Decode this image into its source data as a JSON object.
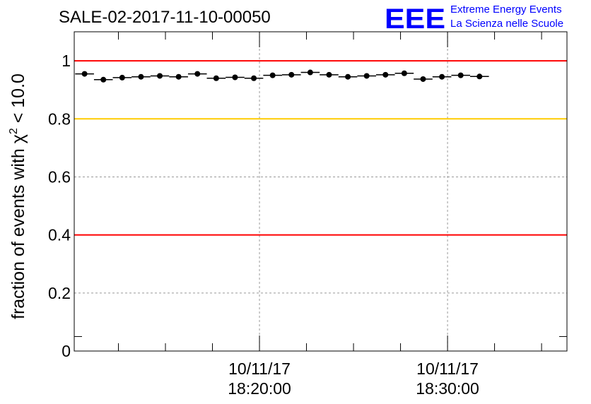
{
  "chart_data": {
    "type": "scatter",
    "title": "SALE-02-2017-11-10-00050",
    "ylabel_prefix": "fraction of events with χ",
    "ylabel_sup": "2",
    "ylabel_suffix": " < 10.0",
    "xlabel": "",
    "x_unit": "minutes after 10/11/17 18:10:00",
    "xlim": [
      -4.85,
      21.35
    ],
    "ylim": [
      0,
      1.1
    ],
    "y_ticks": [
      0,
      0.2,
      0.4,
      0.6,
      0.8,
      1
    ],
    "y_tick_labels": [
      "0",
      "0.2",
      "0.4",
      "0.6",
      "0.8",
      "1"
    ],
    "x_tick_labels": [
      {
        "x": 5,
        "date": "10/11/17",
        "time": "18:20:00"
      },
      {
        "x": 15,
        "date": "10/11/17",
        "time": "18:30:00"
      }
    ],
    "x": [
      -4.3,
      -3.3,
      -2.3,
      -1.3,
      -0.3,
      0.7,
      1.7,
      2.7,
      3.7,
      4.7,
      5.7,
      6.7,
      7.7,
      8.7,
      9.7,
      10.7,
      11.7,
      12.7,
      13.7,
      14.7,
      15.7,
      16.7
    ],
    "x_halfwidth": 0.5,
    "values": [
      0.955,
      0.935,
      0.942,
      0.945,
      0.948,
      0.945,
      0.955,
      0.94,
      0.943,
      0.94,
      0.95,
      0.952,
      0.96,
      0.952,
      0.945,
      0.948,
      0.952,
      0.957,
      0.937,
      0.945,
      0.95,
      0.946
    ],
    "reference_lines": [
      {
        "y": 1.0,
        "color": "#ff0000"
      },
      {
        "y": 0.8,
        "color": "#ffcc00"
      },
      {
        "y": 0.4,
        "color": "#ff0000"
      }
    ],
    "grid": true
  },
  "logo": {
    "mark": "EEE",
    "line1": "Extreme Energy Events",
    "line2": "La Scienza nelle Scuole",
    "color": "#0000ff"
  }
}
